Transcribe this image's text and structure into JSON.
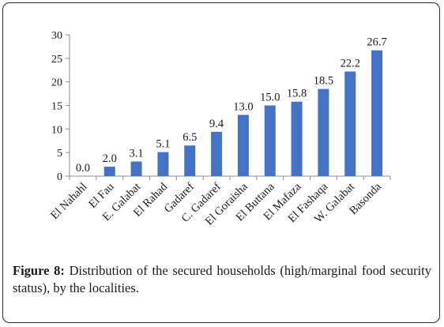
{
  "caption": {
    "label": "Figure 8:",
    "text": " Distribution of the secured households (high/marginal food security status), by the localities."
  },
  "chart_data": {
    "type": "bar",
    "categories": [
      "El Nahahl",
      "El Fau",
      "E. Galabat",
      "El Rahad",
      "Gadaref",
      "C. Gadaref",
      "El Goraisha",
      "El Buttana",
      "El Mafaza",
      "El Fashaqa",
      "W. Galabat",
      "Basonda"
    ],
    "values": [
      0.0,
      2.0,
      3.1,
      5.1,
      6.5,
      9.4,
      13.0,
      15.0,
      15.8,
      18.5,
      22.2,
      26.7
    ],
    "data_labels": [
      "0.0",
      "2.0",
      "3.1",
      "5.1",
      "6.5",
      "9.4",
      "13.0",
      "15.0",
      "15.8",
      "18.5",
      "22.2",
      "26.7"
    ],
    "ylim": [
      0,
      30
    ],
    "yticks": [
      0,
      5,
      10,
      15,
      20,
      25,
      30
    ],
    "bar_color": "#4472c4",
    "grid": false,
    "legend": "none"
  }
}
